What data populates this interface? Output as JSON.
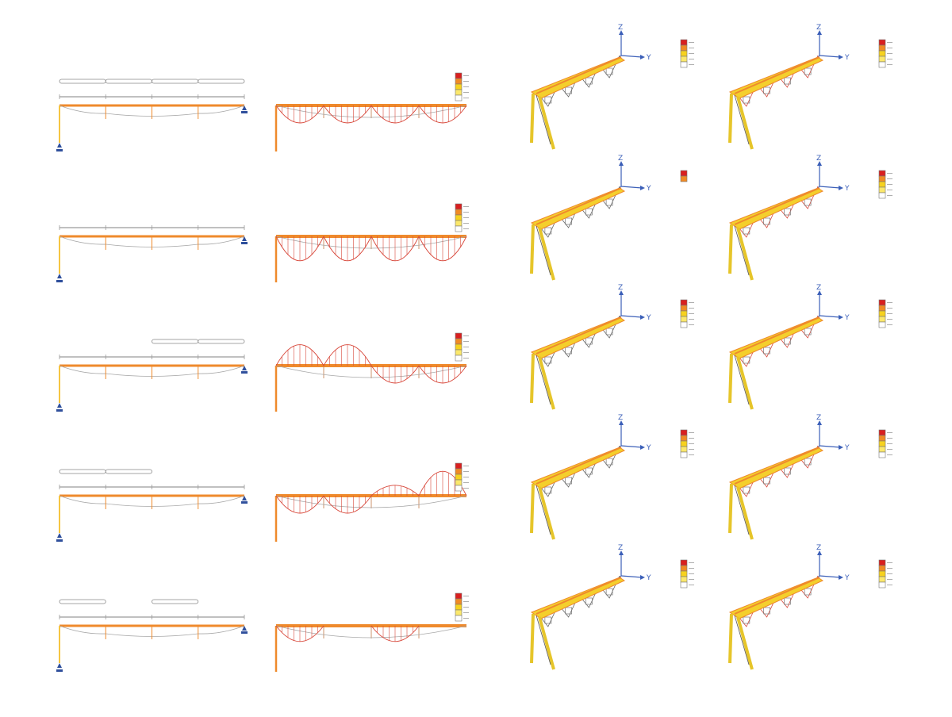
{
  "colors": {
    "background": "#ffffff",
    "beam": "#ef8a2c",
    "column": "#f2d65a",
    "column_2d": "#f5c542",
    "diagram_red": "#d8483b",
    "axis_blue": "#3b5fb8",
    "support_blue": "#2f4f9c",
    "deflection_grey": "#a8a8a8",
    "load_outline": "#888888",
    "legend_steps": [
      "#d91f1f",
      "#f08a24",
      "#f7d21e",
      "#fbe86b",
      "#ffffff"
    ]
  },
  "axes": {
    "z": "Z",
    "y": "Y"
  },
  "rows": [
    {
      "id": "case-1",
      "loads": [
        [
          0,
          1
        ],
        [
          1,
          2
        ],
        [
          2,
          3
        ],
        [
          3,
          4
        ]
      ],
      "moment_pattern": [
        -1,
        -1,
        -1,
        -1
      ],
      "legend": {
        "steps": 5
      },
      "legend_3d": {
        "steps": 5
      },
      "legend_3d_b": {
        "steps": 5
      },
      "view_b_red": true
    },
    {
      "id": "case-2",
      "loads": [],
      "moment_pattern": [
        -1.4,
        -1.4,
        -1.4,
        -1.4
      ],
      "legend": {
        "steps": 5
      },
      "legend_3d": {
        "steps": 2
      },
      "legend_3d_b": {
        "steps": 5
      },
      "view_b_red": true
    },
    {
      "id": "case-3",
      "loads": [
        [
          2,
          3
        ],
        [
          3,
          4
        ]
      ],
      "moment_pattern": [
        1.2,
        1.2,
        -1,
        -1
      ],
      "legend": {
        "steps": 5
      },
      "legend_3d": {
        "steps": 5
      },
      "legend_3d_b": {
        "steps": 5
      },
      "view_b_red": true
    },
    {
      "id": "case-4",
      "loads": [
        [
          0,
          1
        ],
        [
          1,
          2
        ]
      ],
      "moment_pattern": [
        -1,
        -1,
        0.6,
        1.4
      ],
      "legend": {
        "steps": 5
      },
      "legend_3d": {
        "steps": 5
      },
      "legend_3d_b": {
        "steps": 5
      },
      "view_b_red": true
    },
    {
      "id": "case-5",
      "loads": [
        [
          0,
          1
        ],
        [
          2,
          3
        ]
      ],
      "moment_pattern": [
        -0.9,
        0,
        -0.9,
        0
      ],
      "legend": {
        "steps": 5
      },
      "legend_3d": {
        "steps": 5
      },
      "legend_3d_b": {
        "steps": 5
      },
      "view_b_red": true
    }
  ]
}
